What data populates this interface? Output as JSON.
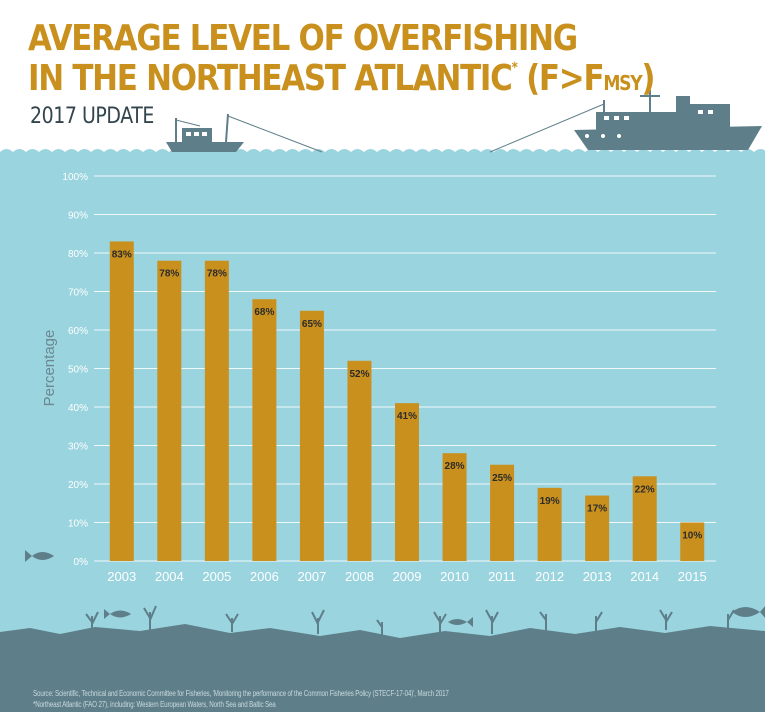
{
  "header": {
    "title_line1": "AVERAGE LEVEL OF OVERFISHING",
    "title_line2_main": "IN THE NORTHEAST ATLANTIC",
    "title_line2_marker": "*",
    "title_line2_formula_a": " (F>F",
    "title_line2_formula_sub": "MSY",
    "title_line2_formula_b": ")",
    "subtitle": "2017 UPDATE"
  },
  "footer": {
    "source": "Source: Scientific, Technical and Economic Committee for Fisheries, 'Monitoring the performance of the Common Fisheries Policy (STECF-17-04)', March 2017",
    "note": "*Northeast Atlantic (FAO 27), including: Western European Waters, North Sea and Baltic Sea"
  },
  "colors": {
    "bar": "#c9901e",
    "water": "#9ad4df",
    "seabed": "#5e7f89",
    "ship": "#5e7f89",
    "title": "#c9901e",
    "tick_text": "#ffffff",
    "value_text": "#2b2b2b",
    "ylabel_text": "#6c8890"
  },
  "icons": [
    "fishing-boat-icon",
    "trawler-ship-icon",
    "fish-icon",
    "coral-icon"
  ],
  "chart_data": {
    "type": "bar",
    "categories": [
      "2003",
      "2004",
      "2005",
      "2006",
      "2007",
      "2008",
      "2009",
      "2010",
      "2011",
      "2012",
      "2013",
      "2014",
      "2015"
    ],
    "values": [
      83,
      78,
      78,
      68,
      65,
      52,
      41,
      28,
      25,
      19,
      17,
      22,
      10
    ],
    "data_labels": [
      "83%",
      "78%",
      "78%",
      "68%",
      "65%",
      "52%",
      "41%",
      "28%",
      "25%",
      "19%",
      "17%",
      "22%",
      "10%"
    ],
    "ylabel": "Percentage",
    "xlabel": "",
    "ylim": [
      0,
      100
    ],
    "yticks": [
      0,
      10,
      20,
      30,
      40,
      50,
      60,
      70,
      80,
      90,
      100
    ],
    "ytick_labels": [
      "0%",
      "10%",
      "20%",
      "30%",
      "40%",
      "50%",
      "60%",
      "70%",
      "80%",
      "90%",
      "100%"
    ],
    "grid": true
  }
}
